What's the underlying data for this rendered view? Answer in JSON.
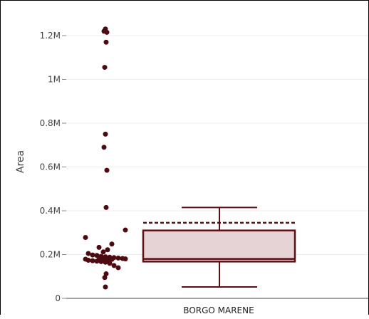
{
  "chart_data": {
    "type": "box",
    "title": "",
    "xlabel": "",
    "ylabel": "Area",
    "ylim": [
      0,
      1300000
    ],
    "grid": true,
    "y_ticks": [
      {
        "value": 0,
        "label": "0"
      },
      {
        "value": 200000,
        "label": "0.2M"
      },
      {
        "value": 400000,
        "label": "0.4M"
      },
      {
        "value": 600000,
        "label": "0.6M"
      },
      {
        "value": 800000,
        "label": "0.8M"
      },
      {
        "value": 1000000,
        "label": "1M"
      },
      {
        "value": 1200000,
        "label": "1.2M"
      }
    ],
    "categories": [
      "BORGO MARENE"
    ],
    "box": {
      "category": "BORGO MARENE",
      "lower_whisker": 52000,
      "q1": 168000,
      "median": 180000,
      "q3": 310000,
      "upper_whisker": 415000,
      "mean": 345000
    },
    "points": [
      1230000,
      1220000,
      1215000,
      1170000,
      1055000,
      750000,
      690000,
      585000,
      415000,
      312000,
      278000,
      248000,
      233000,
      222000,
      212000,
      205000,
      198000,
      196000,
      192000,
      190000,
      188000,
      186000,
      184000,
      182000,
      180000,
      179000,
      178000,
      177000,
      176000,
      175000,
      174000,
      172000,
      170000,
      168000,
      165000,
      160000,
      150000,
      140000,
      112000,
      95000,
      52000
    ],
    "colors": {
      "marker": "#4d0a10",
      "box_fill": "#e6d3d5",
      "box_stroke": "#5a0f14",
      "grid": "#eeeeee",
      "tick_text": "#444444"
    }
  }
}
